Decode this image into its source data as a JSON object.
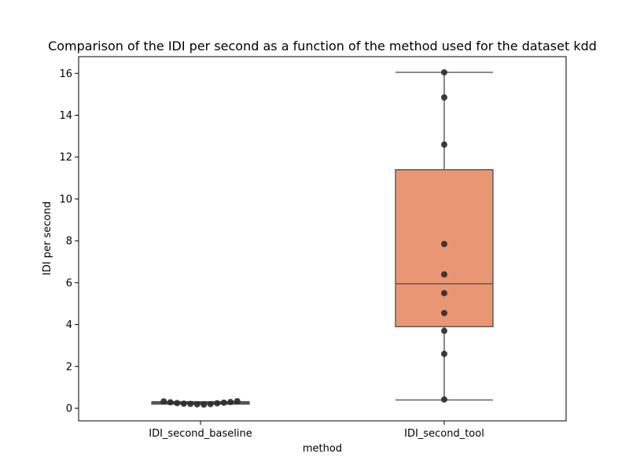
{
  "chart_data": {
    "type": "box",
    "title": "Comparison of the IDI per second as a function of the method used for the dataset kdd",
    "xlabel": "method",
    "ylabel": "IDI per second",
    "ylim": [
      -0.6,
      16.8
    ],
    "yticks": [
      0,
      2,
      4,
      6,
      8,
      10,
      12,
      14,
      16
    ],
    "ytick_labels": [
      "0",
      "2",
      "4",
      "6",
      "8",
      "10",
      "12",
      "14",
      "16"
    ],
    "grid": false,
    "categories": [
      "IDI_second_baseline",
      "IDI_second_tool"
    ],
    "boxes": [
      {
        "category": "IDI_second_baseline",
        "color": "#595959",
        "whisker_low": 0.2,
        "q1": 0.22,
        "median": 0.25,
        "q3": 0.28,
        "whisker_high": 0.32
      },
      {
        "category": "IDI_second_tool",
        "color": "#e99675",
        "whisker_low": 0.4,
        "q1": 3.9,
        "median": 5.95,
        "q3": 11.4,
        "whisker_high": 16.05
      }
    ],
    "points": [
      {
        "category": "IDI_second_baseline",
        "values": [
          0.33,
          0.29,
          0.25,
          0.22,
          0.21,
          0.19,
          0.18,
          0.2,
          0.24,
          0.27,
          0.3,
          0.34
        ]
      },
      {
        "category": "IDI_second_tool",
        "values": [
          16.05,
          14.85,
          12.6,
          7.85,
          6.4,
          5.5,
          4.55,
          3.7,
          2.6,
          0.42
        ]
      }
    ],
    "colors": {
      "axis": "#000000",
      "box_edge": "#555555",
      "point": "#2b2b2b"
    }
  }
}
